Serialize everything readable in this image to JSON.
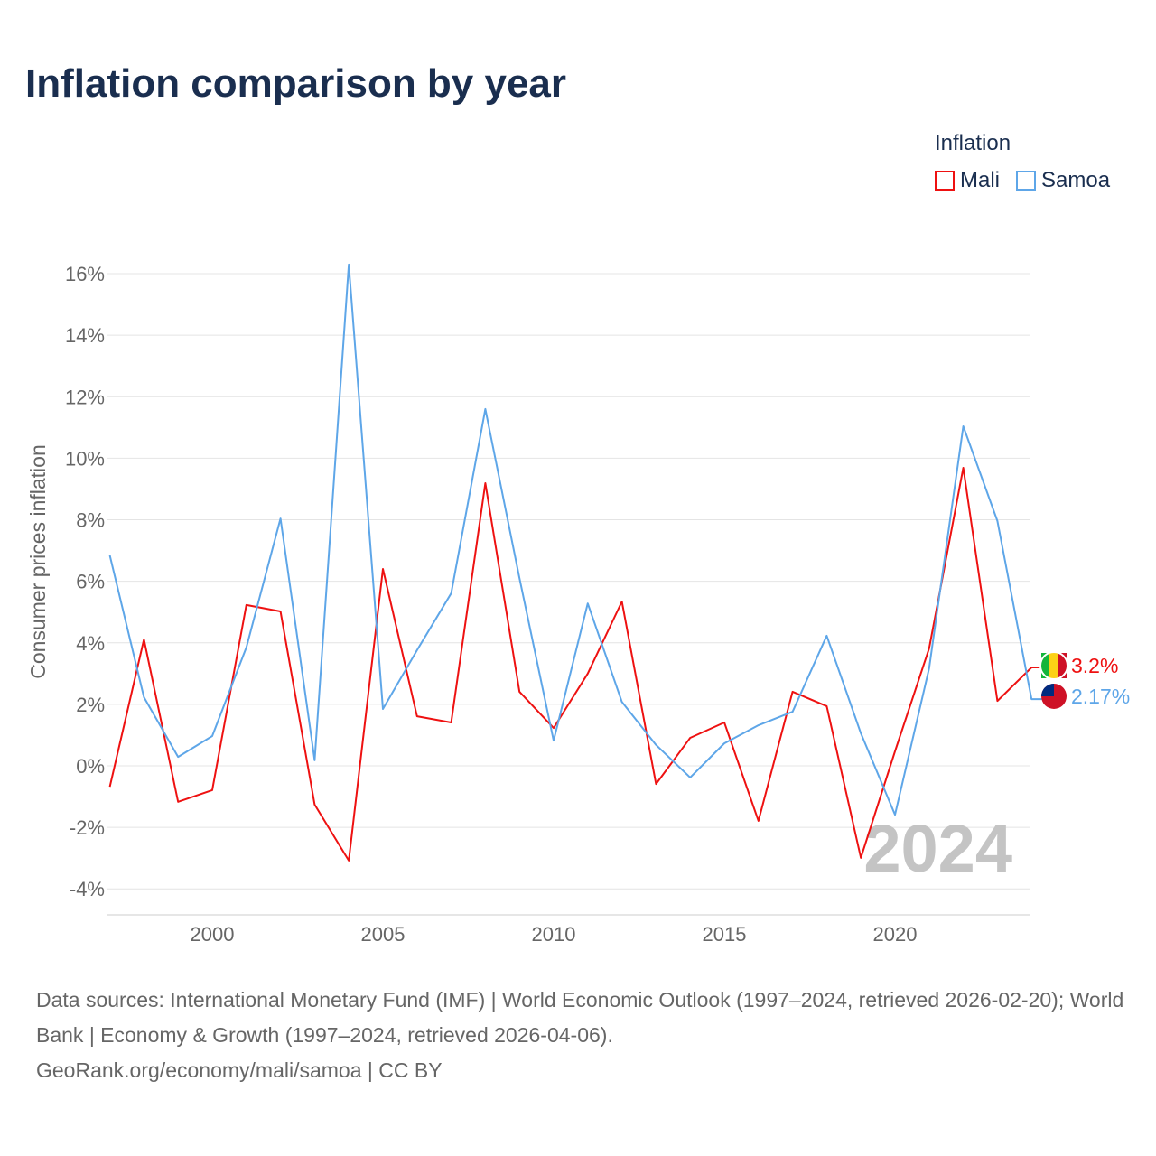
{
  "title": "Inflation comparison by year",
  "legend": {
    "title": "Inflation",
    "items": [
      {
        "name": "Mali",
        "color": "#ee1111"
      },
      {
        "name": "Samoa",
        "color": "#5ea6e8"
      }
    ]
  },
  "chart_data": {
    "type": "line",
    "title": "Inflation comparison by year",
    "xlabel": "",
    "ylabel": "Consumer prices inflation",
    "x": [
      1997,
      1998,
      1999,
      2000,
      2001,
      2002,
      2003,
      2004,
      2005,
      2006,
      2007,
      2008,
      2009,
      2010,
      2011,
      2012,
      2013,
      2014,
      2015,
      2016,
      2017,
      2018,
      2019,
      2020,
      2021,
      2022,
      2023,
      2024
    ],
    "xticks": [
      "2000",
      "2005",
      "2010",
      "2015",
      "2020"
    ],
    "yticks": [
      "-4%",
      "-2%",
      "0%",
      "2%",
      "4%",
      "6%",
      "8%",
      "10%",
      "12%",
      "14%",
      "16%"
    ],
    "ylim": [
      -4.6,
      17
    ],
    "series": [
      {
        "name": "Mali",
        "color": "#ee1111",
        "end_label": "3.2%",
        "values": [
          -0.68,
          4.11,
          -1.17,
          -0.79,
          5.23,
          5.02,
          -1.26,
          -3.08,
          6.4,
          1.61,
          1.41,
          9.19,
          2.41,
          1.23,
          3.0,
          5.34,
          -0.59,
          0.91,
          1.41,
          -1.79,
          2.41,
          1.94,
          -2.99,
          0.47,
          3.82,
          9.69,
          2.11,
          3.2
        ]
      },
      {
        "name": "Samoa",
        "color": "#5ea6e8",
        "end_label": "2.17%",
        "values": [
          6.84,
          2.23,
          0.29,
          0.97,
          3.85,
          8.04,
          0.18,
          16.3,
          1.85,
          3.76,
          5.61,
          11.6,
          6.1,
          0.82,
          5.28,
          2.08,
          0.68,
          -0.38,
          0.73,
          1.32,
          1.76,
          4.23,
          1.06,
          -1.59,
          3.17,
          11.04,
          7.96,
          2.17
        ]
      }
    ],
    "watermark_year": "2024",
    "grid": true,
    "legend_position": "top-right"
  },
  "source": {
    "line1": "Data sources: International Monetary Fund (IMF) | World Economic Outlook (1997–2024, retrieved 2026-02-20); World Bank | Economy & Growth (1997–2024, retrieved 2026-04-06).",
    "line2": "GeoRank.org/economy/mali/samoa | CC BY"
  }
}
